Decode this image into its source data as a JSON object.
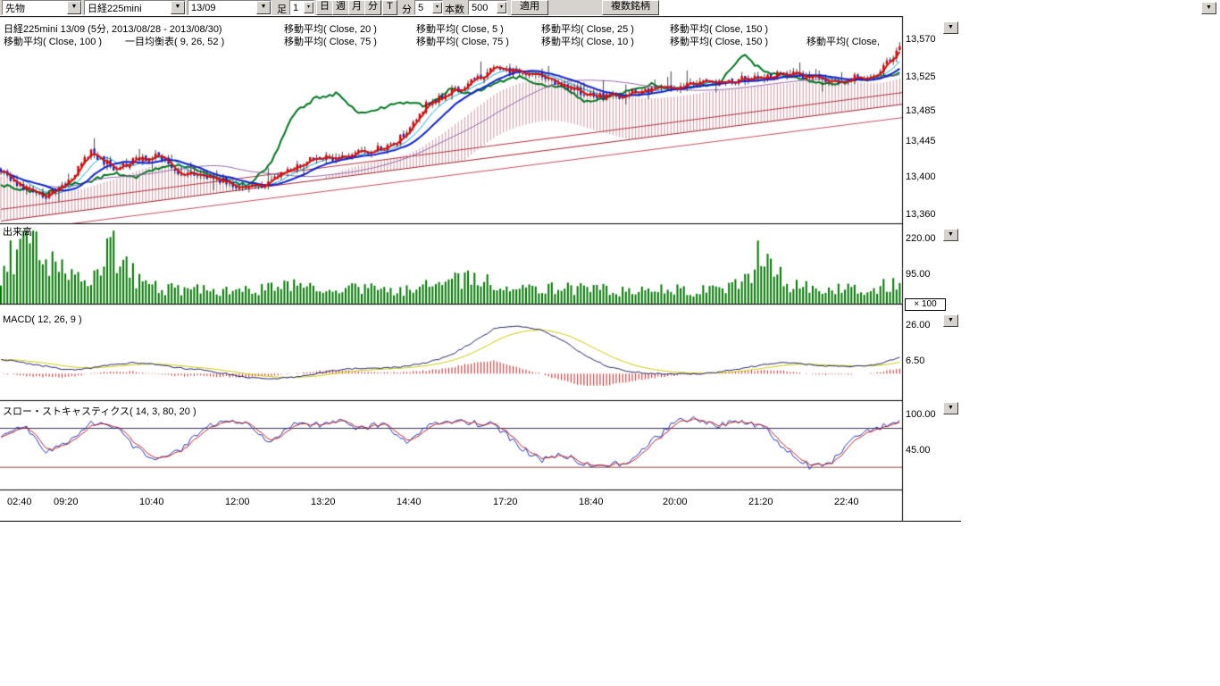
{
  "toolbar": {
    "category_select": "先物",
    "symbol_select": "日経225mini",
    "contract_select": "13/09",
    "bar_label": "足",
    "bar_value": "1",
    "period_buttons": [
      "日",
      "週",
      "月",
      "分"
    ],
    "tick_button": "T",
    "minute_label": "分",
    "minute_value": "5",
    "bars_label": "本数",
    "bars_value": "500",
    "apply_button": "適用",
    "multi_symbol_button": "複数銘柄"
  },
  "legend": {
    "row1": [
      "日経225mini 13/09 (5分, 2013/08/28 - 2013/08/30)",
      "移動平均( Close, 20 )",
      "移動平均( Close, 5 )",
      "移動平均( Close, 25 )",
      "移動平均( Close, 150 )"
    ],
    "row2": [
      "移動平均( Close, 100 )",
      "一目均衡表( 9, 26, 52 )",
      "移動平均( Close, 75 )",
      "移動平均( Close, 75 )",
      "移動平均( Close, 10 )",
      "移動平均( Close, 150 )",
      "移動平均( Close,"
    ]
  },
  "panels": {
    "volume_label": "出来高",
    "volume_multiplier": "× 100",
    "macd_label": "MACD( 12, 26, 9 )",
    "stoch_label": "スロー・ストキャスティクス( 14, 3, 80, 20 )"
  },
  "axis": {
    "price_ticks": [
      "13,570",
      "13,525",
      "13,485",
      "13,445",
      "13,400",
      "13,360"
    ],
    "volume_ticks": [
      "220.00",
      "95.00"
    ],
    "macd_ticks": [
      "26.00",
      "6.50"
    ],
    "stoch_ticks": [
      "100.00",
      "45.00"
    ],
    "time_ticks": [
      "02:40",
      "09:20",
      "10:40",
      "12:00",
      "13:20",
      "14:40",
      "17:20",
      "18:40",
      "20:00",
      "21:20",
      "22:40"
    ]
  },
  "chart_data": {
    "type": "candlestick",
    "title": "日経225mini 13/09 (5分, 2013/08/28 - 2013/08/30)",
    "panels": [
      "price",
      "volume",
      "macd",
      "slow_stochastics"
    ],
    "price_ticks": [
      13570,
      13525,
      13485,
      13445,
      13400,
      13360
    ],
    "price_range": [
      13340,
      13590
    ],
    "volume_ticks": [
      220,
      95
    ],
    "volume_scale": "× 100",
    "macd_ticks": [
      26,
      6.5
    ],
    "stoch_ticks": [
      100,
      45
    ],
    "stoch_reference_lines": [
      80,
      20
    ],
    "candles_visible_approx": 280,
    "x_tick_labels": [
      "02:40",
      "09:20",
      "10:40",
      "12:00",
      "13:20",
      "14:40",
      "17:20",
      "18:40",
      "20:00",
      "21:20",
      "22:40"
    ],
    "close_path": [
      13415,
      13390,
      13380,
      13400,
      13435,
      13415,
      13425,
      13430,
      13410,
      13405,
      13400,
      13390,
      13400,
      13415,
      13430,
      13425,
      13435,
      13440,
      13455,
      13495,
      13505,
      13520,
      13535,
      13530,
      13525,
      13515,
      13505,
      13500,
      13505,
      13510,
      13512,
      13515,
      13520,
      13522,
      13525,
      13528,
      13525,
      13520,
      13525,
      13528,
      13560
    ],
    "overlay_green_path": [
      13395,
      13390,
      13385,
      13395,
      13400,
      13410,
      13405,
      13415,
      13420,
      13410,
      13400,
      13395,
      13420,
      13480,
      13500,
      13505,
      13480,
      13488,
      13495,
      13490,
      13510,
      13505,
      13518,
      13525,
      13515,
      13512,
      13496,
      13500,
      13510,
      13516,
      13510,
      13514,
      13518,
      13552,
      13530,
      13526,
      13520,
      13516,
      13520,
      13524,
      13530
    ],
    "volume_path": [
      90,
      230,
      150,
      95,
      60,
      210,
      85,
      55,
      48,
      55,
      42,
      46,
      52,
      62,
      46,
      42,
      56,
      50,
      46,
      60,
      72,
      92,
      62,
      52,
      46,
      56,
      50,
      46,
      42,
      52,
      46,
      42,
      52,
      62,
      195,
      62,
      52,
      46,
      56,
      52,
      75
    ],
    "macd_path": [
      8,
      6,
      4,
      2,
      3,
      5,
      6,
      5,
      3,
      2,
      0,
      -2,
      -3,
      -2,
      0,
      2,
      3,
      3,
      4,
      6,
      10,
      17,
      25,
      26,
      24,
      18,
      10,
      4,
      1,
      0,
      0,
      0,
      1,
      3,
      5,
      6,
      5,
      4,
      4,
      5,
      9
    ],
    "stoch_path": [
      70,
      85,
      40,
      60,
      90,
      85,
      50,
      30,
      45,
      80,
      90,
      85,
      60,
      88,
      85,
      90,
      80,
      88,
      60,
      85,
      90,
      88,
      85,
      55,
      30,
      40,
      25,
      22,
      30,
      60,
      90,
      95,
      85,
      90,
      80,
      45,
      20,
      30,
      70,
      80,
      95
    ],
    "colors": {
      "candle_up": "#d40000",
      "candle_down": "#1c23b4",
      "volume_bar": "#007700",
      "ma_fast": "#d41111",
      "ma_slow": "#1122cc",
      "overlay_green": "#007722",
      "macd_line": "#222266",
      "macd_signal": "#cccc00",
      "macd_hist": "#bb2222",
      "stoch_k": "#2233bb",
      "stoch_d": "#bb2222"
    }
  }
}
